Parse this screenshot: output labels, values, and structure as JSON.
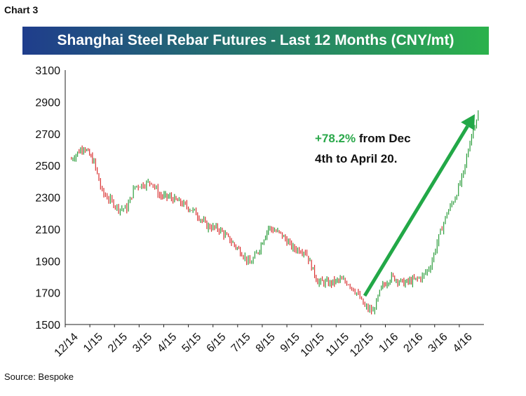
{
  "header": {
    "chart_label": "Chart 3",
    "title": "Shanghai Steel Rebar Futures - Last 12 Months (CNY/mt)"
  },
  "footer": {
    "source": "Source: Bespoke"
  },
  "colors": {
    "title_gradient_start": "#1f3d8c",
    "title_gradient_end": "#2bb24c",
    "up_candle": "#2a9c3a",
    "down_candle": "#d93030",
    "annotation_pct": "#2aa84a",
    "arrow": "#22a847",
    "axis": "#222222"
  },
  "chart_data": {
    "type": "line",
    "title": "Shanghai Steel Rebar Futures - Last 12 Months (CNY/mt)",
    "xlabel": "",
    "ylabel": "",
    "ylim": [
      1500,
      3100
    ],
    "y_ticks": [
      1500,
      1700,
      1900,
      2100,
      2300,
      2500,
      2700,
      2900,
      3100
    ],
    "x_ticks": [
      "12/14",
      "1/15",
      "2/15",
      "3/15",
      "4/15",
      "5/15",
      "6/15",
      "7/15",
      "8/15",
      "9/15",
      "10/15",
      "11/15",
      "12/15",
      "1/16",
      "2/16",
      "3/16",
      "4/16"
    ],
    "grid": false,
    "legend": "none",
    "series": [
      {
        "x": [
          "12/14",
          "12/14",
          "1/15",
          "1/15",
          "1/15",
          "2/15",
          "2/15",
          "2/15",
          "3/15",
          "3/15",
          "3/15",
          "4/15",
          "4/15",
          "5/15",
          "5/15",
          "6/15",
          "6/15",
          "7/15",
          "7/15",
          "7/15",
          "8/15",
          "8/15",
          "9/15",
          "9/15",
          "10/15",
          "10/15",
          "11/15",
          "11/15",
          "11/15",
          "12/15",
          "12/15",
          "12/15",
          "1/16",
          "1/16",
          "2/16",
          "2/16",
          "2/16",
          "3/16",
          "3/16",
          "3/16",
          "4/16",
          "4/16",
          "4/16"
        ],
        "values": [
          2540,
          2620,
          2520,
          2330,
          2280,
          2230,
          2230,
          2370,
          2380,
          2400,
          2310,
          2300,
          2260,
          2210,
          2120,
          2100,
          2020,
          1950,
          1880,
          1960,
          2110,
          2070,
          1980,
          1960,
          1770,
          1760,
          1780,
          1760,
          1700,
          1610,
          1580,
          1730,
          1800,
          1760,
          1780,
          1800,
          1870,
          2050,
          2200,
          2300,
          2450,
          2700,
          2860
        ]
      }
    ],
    "annotation": {
      "highlight": "+78.2%",
      "line1_rest": " from Dec",
      "line2": "4th to April 20."
    }
  }
}
